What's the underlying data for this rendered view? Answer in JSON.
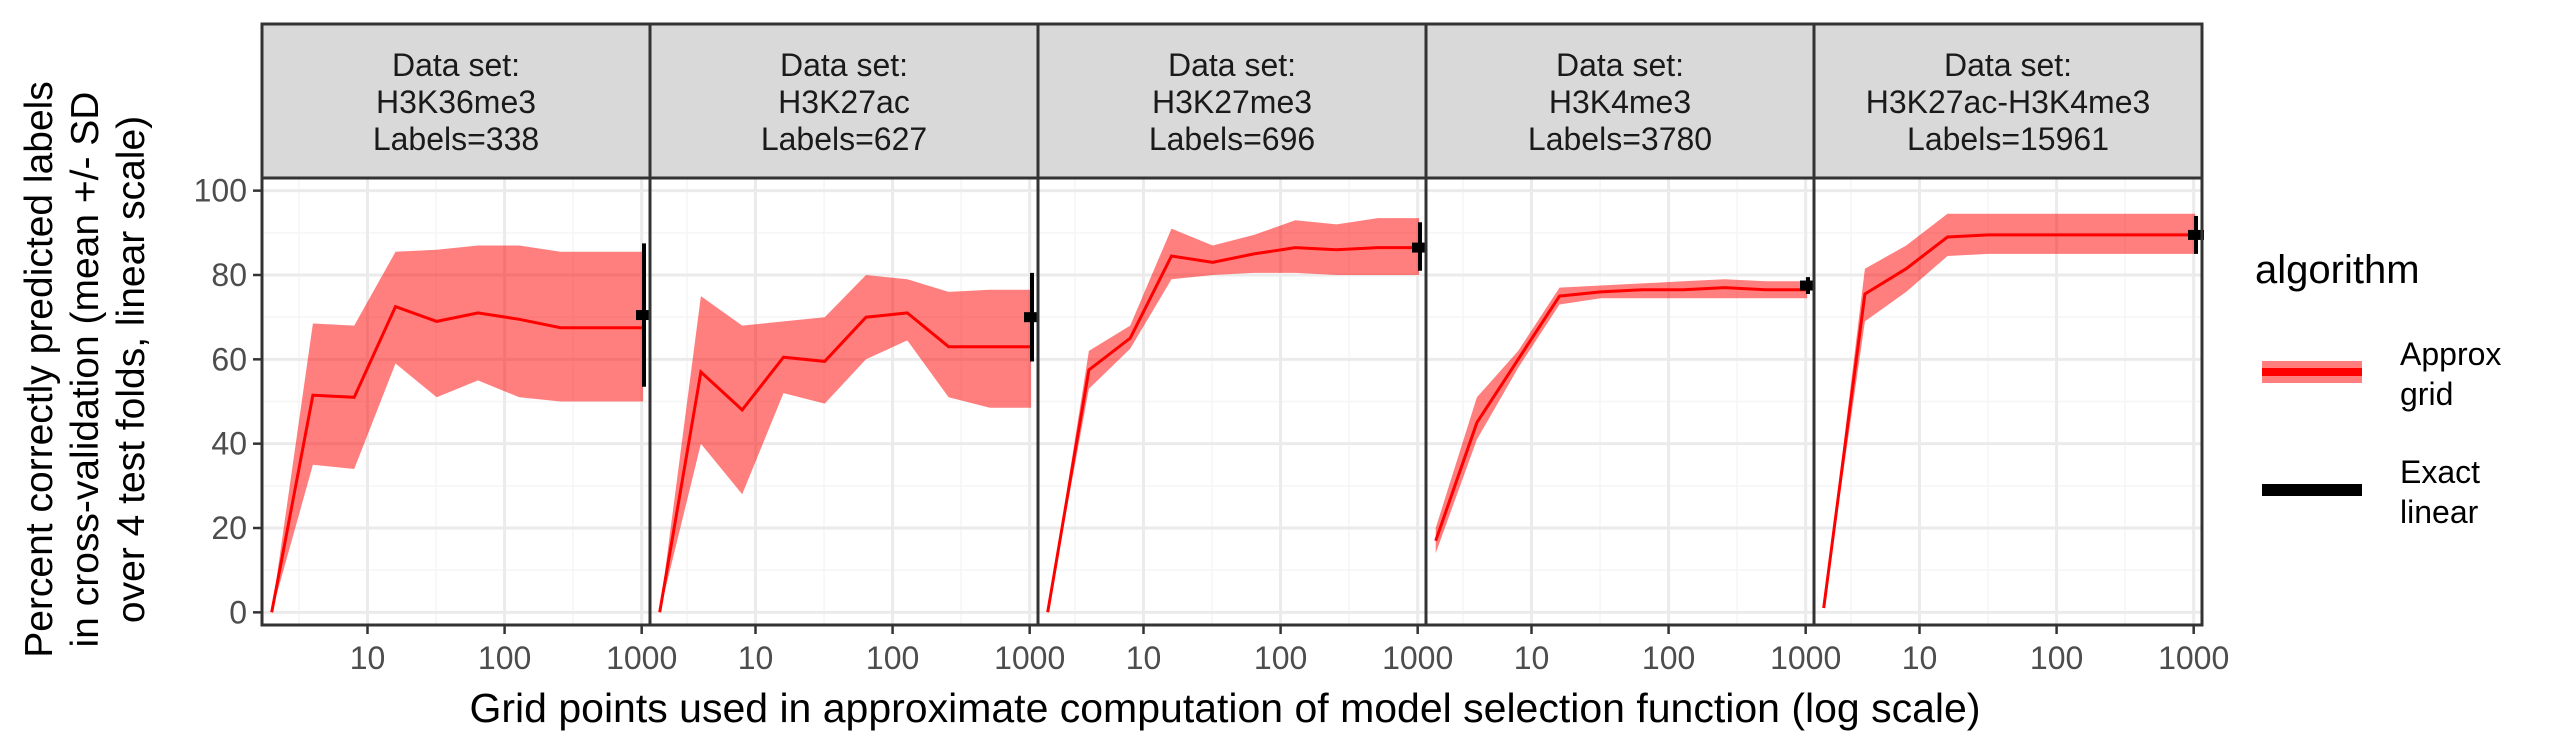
{
  "colors": {
    "approx_line": "#ff0000",
    "approx_band": "#ff0000",
    "exact": "#000000",
    "strip_bg": "#d9d9d9",
    "grid_major": "#ebebeb",
    "grid_minor": "#f5f5f5",
    "panel_border": "#333333",
    "axis_text": "#4d4d4d"
  },
  "chart_data": {
    "type": "line",
    "title": "",
    "xlabel": "Grid points used in approximate computation of model selection function (log scale)",
    "ylabel_lines": [
      "Percent correctly predicted labels",
      "in cross-validation (mean +/- SD",
      "over 4 test folds, linear scale)"
    ],
    "x_scale": "log10",
    "xlim": [
      1.7,
      1150
    ],
    "ylim": [
      -3,
      103
    ],
    "x_ticks": [
      10,
      100,
      1000
    ],
    "x_tick_labels": [
      "10",
      "100",
      "1000"
    ],
    "y_ticks": [
      0,
      20,
      40,
      60,
      80,
      100
    ],
    "y_tick_labels": [
      "0",
      "20",
      "40",
      "60",
      "80",
      "100"
    ],
    "legend": {
      "title": "algorithm",
      "position": "right",
      "entries": [
        {
          "key": "approx",
          "lines": [
            "Approx",
            "grid"
          ]
        },
        {
          "key": "exact",
          "lines": [
            "Exact",
            "linear"
          ]
        }
      ]
    },
    "strip_prefix": "Data set:",
    "panels": [
      {
        "dataset": "H3K36me3",
        "labels_text": "Labels=338",
        "approx": {
          "x": [
            2,
            4,
            8,
            16,
            32,
            64,
            128,
            256,
            512,
            1024
          ],
          "mean": [
            0,
            51.5,
            51,
            72.5,
            69,
            71,
            69.5,
            67.5,
            67.5,
            67.5
          ],
          "lo": [
            0,
            35,
            34,
            59,
            51,
            55,
            51,
            50,
            50,
            50
          ],
          "hi": [
            0,
            68.5,
            68,
            85.5,
            86,
            87,
            87,
            85.5,
            85.5,
            85.5
          ]
        },
        "exact": {
          "mean": 70.5,
          "lo": 53.5,
          "hi": 87.5
        }
      },
      {
        "dataset": "H3K27ac",
        "labels_text": "Labels=627",
        "approx": {
          "x": [
            2,
            4,
            8,
            16,
            32,
            64,
            128,
            256,
            512,
            1024
          ],
          "mean": [
            0,
            57,
            48,
            60.5,
            59.5,
            70,
            71,
            63,
            63,
            63
          ],
          "lo": [
            0,
            40,
            28,
            52,
            49.5,
            60,
            64.5,
            51,
            48.5,
            48.5
          ],
          "hi": [
            0,
            75,
            68,
            69,
            70,
            80,
            79,
            76,
            76.5,
            76.5
          ]
        },
        "exact": {
          "mean": 70,
          "lo": 59.5,
          "hi": 80.5
        }
      },
      {
        "dataset": "H3K27me3",
        "labels_text": "Labels=696",
        "approx": {
          "x": [
            2,
            4,
            8,
            16,
            32,
            64,
            128,
            256,
            512,
            1024
          ],
          "mean": [
            0,
            57.5,
            65,
            84.5,
            83,
            85,
            86.5,
            86,
            86.5,
            86.5
          ],
          "lo": [
            0,
            53,
            62.5,
            79,
            80,
            80.5,
            80.5,
            80,
            80,
            80
          ],
          "hi": [
            0,
            62,
            68,
            91,
            87,
            89.5,
            93,
            92,
            93.5,
            93.5
          ]
        },
        "exact": {
          "mean": 86.5,
          "lo": 81,
          "hi": 92.5
        }
      },
      {
        "dataset": "H3K4me3",
        "labels_text": "Labels=3780",
        "approx": {
          "x": [
            2,
            4,
            8,
            16,
            32,
            64,
            128,
            256,
            512,
            1024
          ],
          "mean": [
            17,
            45,
            60,
            75,
            76,
            76.5,
            76.5,
            77,
            76.5,
            76.5
          ],
          "lo": [
            14,
            41,
            58,
            73,
            74.5,
            74.5,
            74.5,
            74.5,
            74.5,
            74.5
          ],
          "hi": [
            20,
            51,
            62,
            77,
            77.5,
            78,
            78.5,
            79,
            78.5,
            78.5
          ]
        },
        "exact": {
          "mean": 77.5,
          "lo": 75.5,
          "hi": 79.5
        }
      },
      {
        "dataset": "H3K27ac-H3K4me3",
        "labels_text": "Labels=15961",
        "approx": {
          "x": [
            2,
            4,
            8,
            16,
            32,
            64,
            128,
            256,
            512,
            1024
          ],
          "mean": [
            1,
            75.5,
            81.5,
            89,
            89.5,
            89.5,
            89.5,
            89.5,
            89.5,
            89.5
          ],
          "lo": [
            1,
            69,
            76,
            84.5,
            85,
            85,
            85,
            85,
            85,
            85
          ],
          "hi": [
            1,
            81.5,
            87,
            94.5,
            94.5,
            94.5,
            94.5,
            94.5,
            94.5,
            94.5
          ]
        },
        "exact": {
          "mean": 89.5,
          "lo": 85,
          "hi": 94
        }
      }
    ]
  }
}
